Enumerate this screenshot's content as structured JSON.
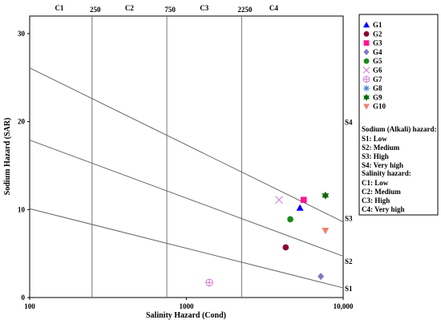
{
  "chart_data": {
    "type": "scatter",
    "title": "",
    "xlabel": "Salinity Hazard (Cond)",
    "ylabel": "Sodium Hazard (SAR)",
    "xscale": "log",
    "xlim": [
      100,
      10000
    ],
    "ylim": [
      0,
      32
    ],
    "x_ticks": [
      "100",
      "1000",
      "10,000"
    ],
    "y_ticks": [
      "0",
      "10",
      "20",
      "30"
    ],
    "salinity_classes": [
      {
        "label": "C1"
      },
      {
        "label": "C2"
      },
      {
        "label": "C3"
      },
      {
        "label": "C4"
      }
    ],
    "salinity_boundaries": [
      {
        "value": 250,
        "label": "250"
      },
      {
        "value": 750,
        "label": "750"
      },
      {
        "value": 2250,
        "label": "2250"
      }
    ],
    "sodium_lines": [
      {
        "label": "S1",
        "sar_at_100": 10.1,
        "sar_at_10000": 1.1
      },
      {
        "label": "S2",
        "sar_at_100": 17.9,
        "sar_at_10000": 4.7
      },
      {
        "label": "S3",
        "sar_at_100": 26.1,
        "sar_at_10000": 8.6
      }
    ],
    "sodium_zone_labels": [
      "S4",
      "S3",
      "S2",
      "S1"
    ],
    "series": [
      {
        "name": "G1",
        "marker": "triangle-up",
        "color": "#0000ff",
        "points": [
          [
            5300,
            10.2
          ]
        ]
      },
      {
        "name": "G2",
        "marker": "circle",
        "color": "#8b003a",
        "points": [
          [
            4300,
            5.7
          ]
        ]
      },
      {
        "name": "G3",
        "marker": "square",
        "color": "#ff1493",
        "points": [
          [
            5600,
            11.1
          ]
        ]
      },
      {
        "name": "G4",
        "marker": "diamond",
        "color": "#7b7bc4",
        "points": [
          [
            7200,
            2.4
          ]
        ]
      },
      {
        "name": "G5",
        "marker": "circle",
        "color": "#1a8a1a",
        "points": [
          [
            4600,
            8.9
          ]
        ]
      },
      {
        "name": "G6",
        "marker": "x",
        "color": "#d27ad2",
        "points": [
          [
            3900,
            11.1
          ]
        ]
      },
      {
        "name": "G7",
        "marker": "circle-plus",
        "color": "#d27ad2",
        "points": [
          [
            1400,
            1.7
          ]
        ]
      },
      {
        "name": "G8",
        "marker": "asterisk",
        "color": "#3a7fd6",
        "points": []
      },
      {
        "name": "G9",
        "marker": "star",
        "color": "#0a6b0a",
        "points": [
          [
            7700,
            11.6
          ]
        ]
      },
      {
        "name": "G10",
        "marker": "triangle-down",
        "color": "#f08070",
        "points": [
          [
            7700,
            7.6
          ]
        ]
      }
    ],
    "legend_placement": "right",
    "sodium_hazard_legend": {
      "title": "Sodium (Alkali) hazard:",
      "items": [
        "S1: Low",
        "S2: Medium",
        "S3: High",
        "S4: Very high"
      ]
    },
    "salinity_hazard_legend": {
      "title": "Salinity hazard:",
      "items": [
        "C1: Low",
        "C2: Medium",
        "C3: High",
        "C4: Very high"
      ]
    }
  }
}
